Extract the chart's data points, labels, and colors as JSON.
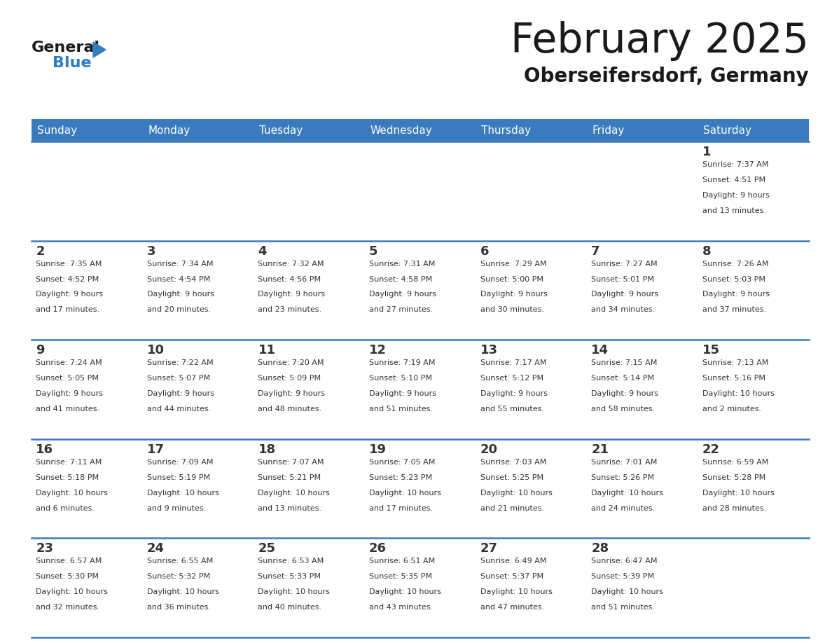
{
  "title": "February 2025",
  "subtitle": "Oberseifersdorf, Germany",
  "days_of_week": [
    "Sunday",
    "Monday",
    "Tuesday",
    "Wednesday",
    "Thursday",
    "Friday",
    "Saturday"
  ],
  "header_bg_color": "#3a7abf",
  "header_text_color": "#ffffff",
  "cell_bg_color": "#ffffff",
  "day_number_color": "#333333",
  "info_text_color": "#333333",
  "divider_color": "#3a7abf",
  "logo_general_color": "#1a1a1a",
  "logo_blue_color": "#2e7fc1",
  "calendar_data": [
    {
      "day": 1,
      "col": 6,
      "row": 0,
      "sunrise": "7:37 AM",
      "sunset": "4:51 PM",
      "daylight": "9 hours and 13 minutes."
    },
    {
      "day": 2,
      "col": 0,
      "row": 1,
      "sunrise": "7:35 AM",
      "sunset": "4:52 PM",
      "daylight": "9 hours and 17 minutes."
    },
    {
      "day": 3,
      "col": 1,
      "row": 1,
      "sunrise": "7:34 AM",
      "sunset": "4:54 PM",
      "daylight": "9 hours and 20 minutes."
    },
    {
      "day": 4,
      "col": 2,
      "row": 1,
      "sunrise": "7:32 AM",
      "sunset": "4:56 PM",
      "daylight": "9 hours and 23 minutes."
    },
    {
      "day": 5,
      "col": 3,
      "row": 1,
      "sunrise": "7:31 AM",
      "sunset": "4:58 PM",
      "daylight": "9 hours and 27 minutes."
    },
    {
      "day": 6,
      "col": 4,
      "row": 1,
      "sunrise": "7:29 AM",
      "sunset": "5:00 PM",
      "daylight": "9 hours and 30 minutes."
    },
    {
      "day": 7,
      "col": 5,
      "row": 1,
      "sunrise": "7:27 AM",
      "sunset": "5:01 PM",
      "daylight": "9 hours and 34 minutes."
    },
    {
      "day": 8,
      "col": 6,
      "row": 1,
      "sunrise": "7:26 AM",
      "sunset": "5:03 PM",
      "daylight": "9 hours and 37 minutes."
    },
    {
      "day": 9,
      "col": 0,
      "row": 2,
      "sunrise": "7:24 AM",
      "sunset": "5:05 PM",
      "daylight": "9 hours and 41 minutes."
    },
    {
      "day": 10,
      "col": 1,
      "row": 2,
      "sunrise": "7:22 AM",
      "sunset": "5:07 PM",
      "daylight": "9 hours and 44 minutes."
    },
    {
      "day": 11,
      "col": 2,
      "row": 2,
      "sunrise": "7:20 AM",
      "sunset": "5:09 PM",
      "daylight": "9 hours and 48 minutes."
    },
    {
      "day": 12,
      "col": 3,
      "row": 2,
      "sunrise": "7:19 AM",
      "sunset": "5:10 PM",
      "daylight": "9 hours and 51 minutes."
    },
    {
      "day": 13,
      "col": 4,
      "row": 2,
      "sunrise": "7:17 AM",
      "sunset": "5:12 PM",
      "daylight": "9 hours and 55 minutes."
    },
    {
      "day": 14,
      "col": 5,
      "row": 2,
      "sunrise": "7:15 AM",
      "sunset": "5:14 PM",
      "daylight": "9 hours and 58 minutes."
    },
    {
      "day": 15,
      "col": 6,
      "row": 2,
      "sunrise": "7:13 AM",
      "sunset": "5:16 PM",
      "daylight": "10 hours and 2 minutes."
    },
    {
      "day": 16,
      "col": 0,
      "row": 3,
      "sunrise": "7:11 AM",
      "sunset": "5:18 PM",
      "daylight": "10 hours and 6 minutes."
    },
    {
      "day": 17,
      "col": 1,
      "row": 3,
      "sunrise": "7:09 AM",
      "sunset": "5:19 PM",
      "daylight": "10 hours and 9 minutes."
    },
    {
      "day": 18,
      "col": 2,
      "row": 3,
      "sunrise": "7:07 AM",
      "sunset": "5:21 PM",
      "daylight": "10 hours and 13 minutes."
    },
    {
      "day": 19,
      "col": 3,
      "row": 3,
      "sunrise": "7:05 AM",
      "sunset": "5:23 PM",
      "daylight": "10 hours and 17 minutes."
    },
    {
      "day": 20,
      "col": 4,
      "row": 3,
      "sunrise": "7:03 AM",
      "sunset": "5:25 PM",
      "daylight": "10 hours and 21 minutes."
    },
    {
      "day": 21,
      "col": 5,
      "row": 3,
      "sunrise": "7:01 AM",
      "sunset": "5:26 PM",
      "daylight": "10 hours and 24 minutes."
    },
    {
      "day": 22,
      "col": 6,
      "row": 3,
      "sunrise": "6:59 AM",
      "sunset": "5:28 PM",
      "daylight": "10 hours and 28 minutes."
    },
    {
      "day": 23,
      "col": 0,
      "row": 4,
      "sunrise": "6:57 AM",
      "sunset": "5:30 PM",
      "daylight": "10 hours and 32 minutes."
    },
    {
      "day": 24,
      "col": 1,
      "row": 4,
      "sunrise": "6:55 AM",
      "sunset": "5:32 PM",
      "daylight": "10 hours and 36 minutes."
    },
    {
      "day": 25,
      "col": 2,
      "row": 4,
      "sunrise": "6:53 AM",
      "sunset": "5:33 PM",
      "daylight": "10 hours and 40 minutes."
    },
    {
      "day": 26,
      "col": 3,
      "row": 4,
      "sunrise": "6:51 AM",
      "sunset": "5:35 PM",
      "daylight": "10 hours and 43 minutes."
    },
    {
      "day": 27,
      "col": 4,
      "row": 4,
      "sunrise": "6:49 AM",
      "sunset": "5:37 PM",
      "daylight": "10 hours and 47 minutes."
    },
    {
      "day": 28,
      "col": 5,
      "row": 4,
      "sunrise": "6:47 AM",
      "sunset": "5:39 PM",
      "daylight": "10 hours and 51 minutes."
    }
  ]
}
